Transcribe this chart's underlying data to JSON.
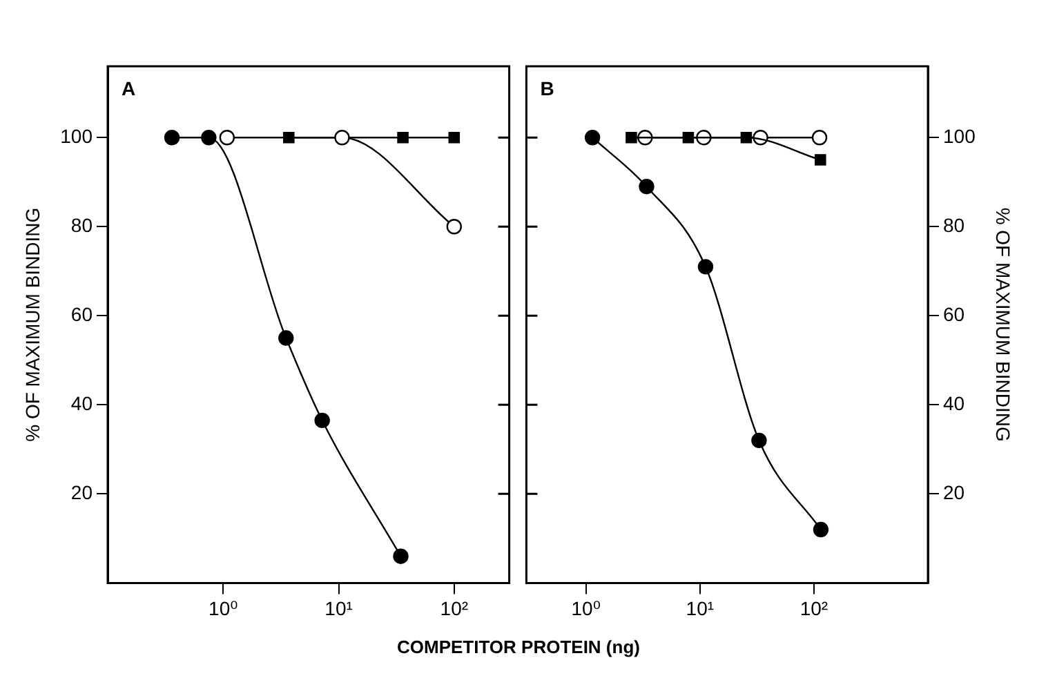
{
  "chart_data": [
    {
      "type": "line",
      "title": "A",
      "ylabel": "% OF MAXIMUM BINDING",
      "xlabel": "COMPETITOR PROTEIN (ng)",
      "log": "x",
      "grid": false,
      "line_style": "solid",
      "xlim": [
        0.1,
        300
      ],
      "xticks": [
        {
          "value": 1,
          "label": "10⁰"
        },
        {
          "value": 10,
          "label": "10¹"
        },
        {
          "value": 100,
          "label": "10²"
        }
      ],
      "ylim": [
        0,
        116
      ],
      "yticks": [
        20,
        40,
        60,
        80,
        100
      ],
      "series": [
        {
          "color": "#000000",
          "marker": "circle",
          "x": [
            0.36,
            0.75,
            3.5,
            7.2,
            34.5
          ],
          "values": [
            100,
            100,
            55,
            36.5,
            6
          ]
        },
        {
          "color": "#ffffff",
          "marker": "circle",
          "x": [
            1.08,
            10.7,
            100
          ],
          "values": [
            100,
            100,
            80
          ]
        },
        {
          "color": "#000000",
          "marker": "square",
          "x": [
            3.7,
            36,
            100
          ],
          "values": [
            100,
            100,
            100
          ]
        }
      ]
    },
    {
      "type": "line",
      "title": "B",
      "y2label": "% OF MAXIMUM BINDING",
      "log": "x",
      "grid": false,
      "line_style": "solid",
      "xlim": [
        0.3,
        1000
      ],
      "xticks": [
        {
          "value": 1,
          "label": "10⁰"
        },
        {
          "value": 10,
          "label": "10¹"
        },
        {
          "value": 100,
          "label": "10²"
        }
      ],
      "y2lim": [
        0,
        116
      ],
      "y2ticks": [
        20,
        40,
        60,
        80,
        100
      ],
      "series": [
        {
          "color": "#000000",
          "marker": "circle",
          "axis": "y2",
          "x": [
            1.14,
            3.4,
            11.2,
            33,
            115
          ],
          "values": [
            100,
            89,
            71,
            32,
            12
          ]
        },
        {
          "color": "#000000",
          "marker": "square",
          "axis": "y2",
          "x": [
            2.5,
            7.9,
            25.5,
            114
          ],
          "values": [
            100,
            100,
            100,
            95
          ]
        },
        {
          "color": "#ffffff",
          "marker": "circle",
          "axis": "y2",
          "x": [
            3.3,
            10.8,
            34,
            112
          ],
          "values": [
            100,
            100,
            100,
            100
          ]
        }
      ]
    }
  ]
}
